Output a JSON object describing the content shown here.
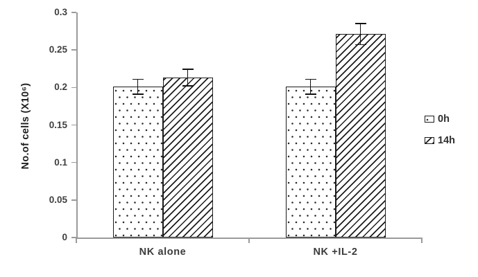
{
  "chart_data": {
    "type": "bar",
    "title": "",
    "categories": [
      "NK alone",
      "NK +IL-2"
    ],
    "series": [
      {
        "name": "0h",
        "pattern": "dots",
        "values": [
          0.201,
          0.201
        ],
        "errors": [
          0.01,
          0.01
        ]
      },
      {
        "name": "14h",
        "pattern": "hatch",
        "values": [
          0.213,
          0.271
        ],
        "errors": [
          0.011,
          0.014
        ]
      }
    ],
    "ylabel": "No.of cells (X10⁶)",
    "xlabel": "",
    "ylim": [
      0,
      0.3
    ],
    "ytick_step": 0.05,
    "yticks": [
      "0",
      "0.05",
      "0.1",
      "0.15",
      "0.2",
      "0.25",
      "0.3"
    ],
    "grid": false,
    "legend_position": "right",
    "colors": {
      "axis": "#9a9a9a",
      "bar_border": "#1a1a1a",
      "error_bar": "#111111",
      "text": "#3b3b3b",
      "background": "#ffffff"
    }
  }
}
